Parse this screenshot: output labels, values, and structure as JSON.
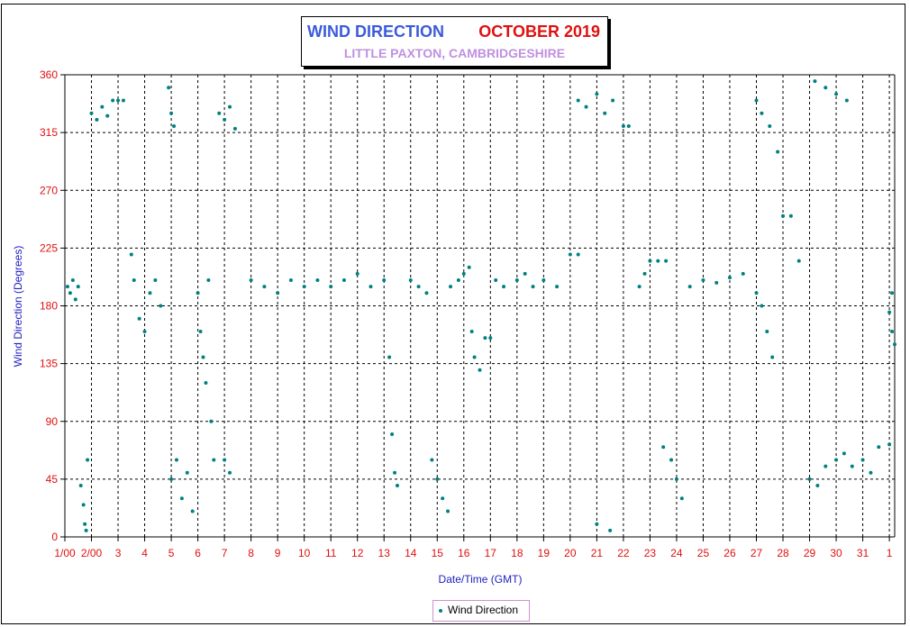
{
  "title": {
    "left": "WIND DIRECTION",
    "right": "OCTOBER 2019",
    "subtitle": "LITTLE PAXTON, CAMBRIDGESHIRE"
  },
  "axes": {
    "ylabel": "Wind Direction (Degrees)",
    "xlabel": "Date/Time (GMT)"
  },
  "legend": {
    "label": "Wind Direction",
    "placement": "bottom-center"
  },
  "colors": {
    "series": "#008080",
    "tick": "#e01010",
    "axis_title": "#2020c0"
  },
  "chart_data": {
    "type": "scatter",
    "grid": true,
    "ylim": [
      0,
      360
    ],
    "xlim": [
      1,
      32.2
    ],
    "yticks": [
      0,
      45,
      90,
      135,
      180,
      225,
      270,
      315,
      360
    ],
    "xticks": [
      {
        "x": 1,
        "label": "1/00"
      },
      {
        "x": 2,
        "label": "2/00"
      },
      {
        "x": 3,
        "label": "3"
      },
      {
        "x": 4,
        "label": "4"
      },
      {
        "x": 5,
        "label": "5"
      },
      {
        "x": 6,
        "label": "6"
      },
      {
        "x": 7,
        "label": "7"
      },
      {
        "x": 8,
        "label": "8"
      },
      {
        "x": 9,
        "label": "9"
      },
      {
        "x": 10,
        "label": "10"
      },
      {
        "x": 11,
        "label": "11"
      },
      {
        "x": 12,
        "label": "12"
      },
      {
        "x": 13,
        "label": "13"
      },
      {
        "x": 14,
        "label": "14"
      },
      {
        "x": 15,
        "label": "15"
      },
      {
        "x": 16,
        "label": "16"
      },
      {
        "x": 17,
        "label": "17"
      },
      {
        "x": 18,
        "label": "18"
      },
      {
        "x": 19,
        "label": "19"
      },
      {
        "x": 20,
        "label": "20"
      },
      {
        "x": 21,
        "label": "21"
      },
      {
        "x": 22,
        "label": "22"
      },
      {
        "x": 23,
        "label": "23"
      },
      {
        "x": 24,
        "label": "24"
      },
      {
        "x": 25,
        "label": "25"
      },
      {
        "x": 26,
        "label": "26"
      },
      {
        "x": 27,
        "label": "27"
      },
      {
        "x": 28,
        "label": "28"
      },
      {
        "x": 29,
        "label": "29"
      },
      {
        "x": 30,
        "label": "30"
      },
      {
        "x": 31,
        "label": "31"
      },
      {
        "x": 32,
        "label": "1"
      }
    ],
    "series": [
      {
        "name": "Wind Direction",
        "points": [
          [
            1.1,
            195
          ],
          [
            1.2,
            190
          ],
          [
            1.3,
            200
          ],
          [
            1.4,
            185
          ],
          [
            1.5,
            195
          ],
          [
            1.6,
            40
          ],
          [
            1.7,
            25
          ],
          [
            1.75,
            10
          ],
          [
            1.8,
            5
          ],
          [
            1.85,
            60
          ],
          [
            2.0,
            330
          ],
          [
            2.2,
            325
          ],
          [
            2.4,
            335
          ],
          [
            2.6,
            328
          ],
          [
            2.8,
            340
          ],
          [
            3.0,
            340
          ],
          [
            3.2,
            340
          ],
          [
            3.5,
            220
          ],
          [
            3.6,
            200
          ],
          [
            3.8,
            170
          ],
          [
            4.0,
            160
          ],
          [
            4.2,
            190
          ],
          [
            4.4,
            200
          ],
          [
            4.6,
            180
          ],
          [
            4.9,
            350
          ],
          [
            5.0,
            330
          ],
          [
            5.1,
            320
          ],
          [
            5.0,
            45
          ],
          [
            5.2,
            60
          ],
          [
            5.4,
            30
          ],
          [
            5.6,
            50
          ],
          [
            5.8,
            20
          ],
          [
            6.0,
            190
          ],
          [
            6.1,
            160
          ],
          [
            6.2,
            140
          ],
          [
            6.3,
            120
          ],
          [
            6.4,
            200
          ],
          [
            6.5,
            90
          ],
          [
            6.6,
            60
          ],
          [
            6.8,
            330
          ],
          [
            7.0,
            325
          ],
          [
            7.2,
            335
          ],
          [
            7.4,
            318
          ],
          [
            7.2,
            50
          ],
          [
            7.0,
            60
          ],
          [
            8.0,
            200
          ],
          [
            8.5,
            195
          ],
          [
            9.0,
            190
          ],
          [
            9.5,
            200
          ],
          [
            10.0,
            195
          ],
          [
            10.5,
            200
          ],
          [
            11.0,
            195
          ],
          [
            11.5,
            200
          ],
          [
            12.0,
            205
          ],
          [
            12.5,
            195
          ],
          [
            13.0,
            200
          ],
          [
            13.2,
            140
          ],
          [
            13.3,
            80
          ],
          [
            13.4,
            50
          ],
          [
            13.5,
            40
          ],
          [
            14.0,
            200
          ],
          [
            14.3,
            195
          ],
          [
            14.6,
            190
          ],
          [
            14.8,
            60
          ],
          [
            15.0,
            45
          ],
          [
            15.2,
            30
          ],
          [
            15.4,
            20
          ],
          [
            15.5,
            195
          ],
          [
            15.8,
            200
          ],
          [
            16.0,
            205
          ],
          [
            16.2,
            210
          ],
          [
            16.3,
            160
          ],
          [
            16.4,
            140
          ],
          [
            16.6,
            130
          ],
          [
            16.8,
            155
          ],
          [
            17.0,
            155
          ],
          [
            17.2,
            200
          ],
          [
            17.5,
            195
          ],
          [
            18.0,
            200
          ],
          [
            18.3,
            205
          ],
          [
            18.6,
            195
          ],
          [
            19.0,
            200
          ],
          [
            19.5,
            195
          ],
          [
            20.0,
            220
          ],
          [
            20.3,
            220
          ],
          [
            20.3,
            340
          ],
          [
            20.6,
            335
          ],
          [
            21.0,
            345
          ],
          [
            21.3,
            330
          ],
          [
            21.6,
            340
          ],
          [
            22.0,
            320
          ],
          [
            22.2,
            320
          ],
          [
            21.0,
            10
          ],
          [
            21.5,
            5
          ],
          [
            22.6,
            195
          ],
          [
            22.8,
            205
          ],
          [
            23.0,
            215
          ],
          [
            23.3,
            215
          ],
          [
            23.6,
            215
          ],
          [
            23.5,
            70
          ],
          [
            23.8,
            60
          ],
          [
            24.0,
            45
          ],
          [
            24.2,
            30
          ],
          [
            24.5,
            195
          ],
          [
            25.0,
            200
          ],
          [
            25.5,
            198
          ],
          [
            26.0,
            202
          ],
          [
            26.5,
            205
          ],
          [
            27.0,
            340
          ],
          [
            27.2,
            330
          ],
          [
            27.5,
            320
          ],
          [
            27.8,
            300
          ],
          [
            27.0,
            190
          ],
          [
            27.2,
            180
          ],
          [
            27.4,
            160
          ],
          [
            27.6,
            140
          ],
          [
            28.0,
            250
          ],
          [
            28.3,
            250
          ],
          [
            28.6,
            215
          ],
          [
            29.0,
            45
          ],
          [
            29.3,
            40
          ],
          [
            29.6,
            55
          ],
          [
            30.0,
            60
          ],
          [
            30.3,
            65
          ],
          [
            30.6,
            55
          ],
          [
            31.0,
            60
          ],
          [
            31.3,
            50
          ],
          [
            31.6,
            70
          ],
          [
            32.0,
            72
          ],
          [
            29.2,
            355
          ],
          [
            29.6,
            350
          ],
          [
            30.0,
            345
          ],
          [
            30.4,
            340
          ],
          [
            32.1,
            160
          ],
          [
            32.2,
            150
          ],
          [
            32.0,
            175
          ],
          [
            32.1,
            190
          ]
        ]
      }
    ]
  }
}
